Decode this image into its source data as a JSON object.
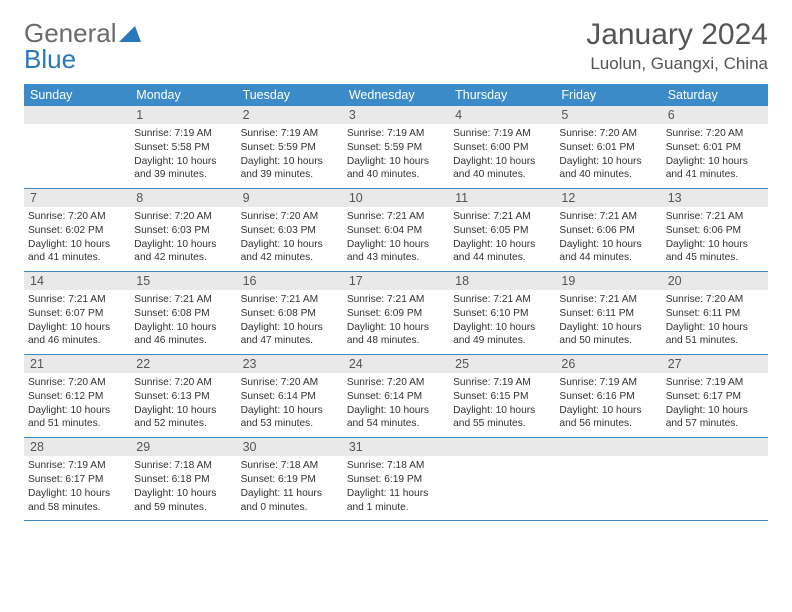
{
  "brand": {
    "part1": "General",
    "part2": "Blue"
  },
  "title": "January 2024",
  "location": "Luolun, Guangxi, China",
  "colors": {
    "header_bg": "#3b8bc9",
    "header_text": "#ffffff",
    "daynum_bg": "#e9e9e9",
    "rule": "#3b8bc9",
    "body_text": "#333333",
    "title_text": "#555555",
    "logo_gray": "#6b6b6b",
    "logo_blue": "#2a78bc",
    "background": "#ffffff"
  },
  "typography": {
    "month_fontsize": 30,
    "location_fontsize": 17,
    "weekday_fontsize": 12.5,
    "daynum_fontsize": 12.5,
    "info_fontsize": 10.2
  },
  "weekdays": [
    "Sunday",
    "Monday",
    "Tuesday",
    "Wednesday",
    "Thursday",
    "Friday",
    "Saturday"
  ],
  "weeks": [
    [
      {
        "day": "",
        "sunrise": "",
        "sunset": "",
        "daylight": ""
      },
      {
        "day": "1",
        "sunrise": "Sunrise: 7:19 AM",
        "sunset": "Sunset: 5:58 PM",
        "daylight": "Daylight: 10 hours and 39 minutes."
      },
      {
        "day": "2",
        "sunrise": "Sunrise: 7:19 AM",
        "sunset": "Sunset: 5:59 PM",
        "daylight": "Daylight: 10 hours and 39 minutes."
      },
      {
        "day": "3",
        "sunrise": "Sunrise: 7:19 AM",
        "sunset": "Sunset: 5:59 PM",
        "daylight": "Daylight: 10 hours and 40 minutes."
      },
      {
        "day": "4",
        "sunrise": "Sunrise: 7:19 AM",
        "sunset": "Sunset: 6:00 PM",
        "daylight": "Daylight: 10 hours and 40 minutes."
      },
      {
        "day": "5",
        "sunrise": "Sunrise: 7:20 AM",
        "sunset": "Sunset: 6:01 PM",
        "daylight": "Daylight: 10 hours and 40 minutes."
      },
      {
        "day": "6",
        "sunrise": "Sunrise: 7:20 AM",
        "sunset": "Sunset: 6:01 PM",
        "daylight": "Daylight: 10 hours and 41 minutes."
      }
    ],
    [
      {
        "day": "7",
        "sunrise": "Sunrise: 7:20 AM",
        "sunset": "Sunset: 6:02 PM",
        "daylight": "Daylight: 10 hours and 41 minutes."
      },
      {
        "day": "8",
        "sunrise": "Sunrise: 7:20 AM",
        "sunset": "Sunset: 6:03 PM",
        "daylight": "Daylight: 10 hours and 42 minutes."
      },
      {
        "day": "9",
        "sunrise": "Sunrise: 7:20 AM",
        "sunset": "Sunset: 6:03 PM",
        "daylight": "Daylight: 10 hours and 42 minutes."
      },
      {
        "day": "10",
        "sunrise": "Sunrise: 7:21 AM",
        "sunset": "Sunset: 6:04 PM",
        "daylight": "Daylight: 10 hours and 43 minutes."
      },
      {
        "day": "11",
        "sunrise": "Sunrise: 7:21 AM",
        "sunset": "Sunset: 6:05 PM",
        "daylight": "Daylight: 10 hours and 44 minutes."
      },
      {
        "day": "12",
        "sunrise": "Sunrise: 7:21 AM",
        "sunset": "Sunset: 6:06 PM",
        "daylight": "Daylight: 10 hours and 44 minutes."
      },
      {
        "day": "13",
        "sunrise": "Sunrise: 7:21 AM",
        "sunset": "Sunset: 6:06 PM",
        "daylight": "Daylight: 10 hours and 45 minutes."
      }
    ],
    [
      {
        "day": "14",
        "sunrise": "Sunrise: 7:21 AM",
        "sunset": "Sunset: 6:07 PM",
        "daylight": "Daylight: 10 hours and 46 minutes."
      },
      {
        "day": "15",
        "sunrise": "Sunrise: 7:21 AM",
        "sunset": "Sunset: 6:08 PM",
        "daylight": "Daylight: 10 hours and 46 minutes."
      },
      {
        "day": "16",
        "sunrise": "Sunrise: 7:21 AM",
        "sunset": "Sunset: 6:08 PM",
        "daylight": "Daylight: 10 hours and 47 minutes."
      },
      {
        "day": "17",
        "sunrise": "Sunrise: 7:21 AM",
        "sunset": "Sunset: 6:09 PM",
        "daylight": "Daylight: 10 hours and 48 minutes."
      },
      {
        "day": "18",
        "sunrise": "Sunrise: 7:21 AM",
        "sunset": "Sunset: 6:10 PM",
        "daylight": "Daylight: 10 hours and 49 minutes."
      },
      {
        "day": "19",
        "sunrise": "Sunrise: 7:21 AM",
        "sunset": "Sunset: 6:11 PM",
        "daylight": "Daylight: 10 hours and 50 minutes."
      },
      {
        "day": "20",
        "sunrise": "Sunrise: 7:20 AM",
        "sunset": "Sunset: 6:11 PM",
        "daylight": "Daylight: 10 hours and 51 minutes."
      }
    ],
    [
      {
        "day": "21",
        "sunrise": "Sunrise: 7:20 AM",
        "sunset": "Sunset: 6:12 PM",
        "daylight": "Daylight: 10 hours and 51 minutes."
      },
      {
        "day": "22",
        "sunrise": "Sunrise: 7:20 AM",
        "sunset": "Sunset: 6:13 PM",
        "daylight": "Daylight: 10 hours and 52 minutes."
      },
      {
        "day": "23",
        "sunrise": "Sunrise: 7:20 AM",
        "sunset": "Sunset: 6:14 PM",
        "daylight": "Daylight: 10 hours and 53 minutes."
      },
      {
        "day": "24",
        "sunrise": "Sunrise: 7:20 AM",
        "sunset": "Sunset: 6:14 PM",
        "daylight": "Daylight: 10 hours and 54 minutes."
      },
      {
        "day": "25",
        "sunrise": "Sunrise: 7:19 AM",
        "sunset": "Sunset: 6:15 PM",
        "daylight": "Daylight: 10 hours and 55 minutes."
      },
      {
        "day": "26",
        "sunrise": "Sunrise: 7:19 AM",
        "sunset": "Sunset: 6:16 PM",
        "daylight": "Daylight: 10 hours and 56 minutes."
      },
      {
        "day": "27",
        "sunrise": "Sunrise: 7:19 AM",
        "sunset": "Sunset: 6:17 PM",
        "daylight": "Daylight: 10 hours and 57 minutes."
      }
    ],
    [
      {
        "day": "28",
        "sunrise": "Sunrise: 7:19 AM",
        "sunset": "Sunset: 6:17 PM",
        "daylight": "Daylight: 10 hours and 58 minutes."
      },
      {
        "day": "29",
        "sunrise": "Sunrise: 7:18 AM",
        "sunset": "Sunset: 6:18 PM",
        "daylight": "Daylight: 10 hours and 59 minutes."
      },
      {
        "day": "30",
        "sunrise": "Sunrise: 7:18 AM",
        "sunset": "Sunset: 6:19 PM",
        "daylight": "Daylight: 11 hours and 0 minutes."
      },
      {
        "day": "31",
        "sunrise": "Sunrise: 7:18 AM",
        "sunset": "Sunset: 6:19 PM",
        "daylight": "Daylight: 11 hours and 1 minute."
      },
      {
        "day": "",
        "sunrise": "",
        "sunset": "",
        "daylight": ""
      },
      {
        "day": "",
        "sunrise": "",
        "sunset": "",
        "daylight": ""
      },
      {
        "day": "",
        "sunrise": "",
        "sunset": "",
        "daylight": ""
      }
    ]
  ]
}
